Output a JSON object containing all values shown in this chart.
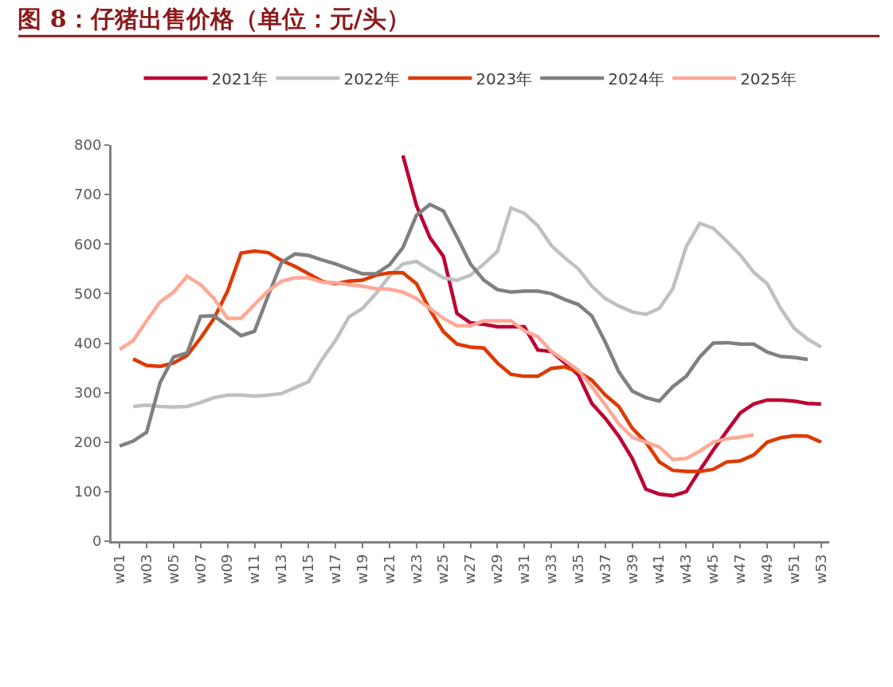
{
  "chart_data": {
    "type": "line",
    "title": "图 8：仔猪出售价格（单位：元/头）",
    "categories": [
      "w01",
      null,
      "w03",
      null,
      "w05",
      null,
      "w07",
      null,
      "w09",
      null,
      "w11",
      null,
      "w13",
      null,
      "w15",
      null,
      "w17",
      null,
      "w19",
      null,
      "w21",
      null,
      "w23",
      null,
      "w25",
      null,
      "w27",
      null,
      "w29",
      null,
      "w31",
      null,
      "w33",
      null,
      "w35",
      null,
      "w37",
      null,
      "w39",
      null,
      "w41",
      null,
      "w43",
      null,
      "w45",
      null,
      "w47",
      null,
      "w49",
      null,
      "w51",
      null,
      "w53"
    ],
    "series": [
      {
        "name": "2021年",
        "color": "#be0032",
        "values": [
          null,
          null,
          null,
          null,
          null,
          null,
          null,
          null,
          null,
          null,
          null,
          null,
          null,
          null,
          null,
          null,
          null,
          null,
          null,
          null,
          null,
          779,
          678,
          613,
          575,
          460,
          441,
          438,
          433,
          433,
          433,
          386,
          383,
          360,
          336,
          278,
          248,
          212,
          167,
          105,
          95,
          92,
          100,
          143,
          184,
          222,
          259,
          277,
          285,
          285,
          283,
          278,
          277
        ]
      },
      {
        "name": "2022年",
        "color": "#c0c0c0",
        "values": [
          null,
          272,
          275,
          272,
          271,
          272,
          280,
          290,
          295,
          295,
          293,
          295,
          298,
          310,
          322,
          367,
          405,
          453,
          470,
          500,
          535,
          560,
          565,
          548,
          532,
          527,
          537,
          560,
          585,
          673,
          662,
          637,
          597,
          572,
          550,
          515,
          490,
          475,
          463,
          458,
          470,
          510,
          595,
          642,
          632,
          606,
          578,
          543,
          520,
          470,
          430,
          408,
          392
        ]
      },
      {
        "name": "2023年",
        "color": "#dd3a00",
        "values": [
          null,
          368,
          355,
          353,
          360,
          375,
          410,
          450,
          505,
          582,
          586,
          583,
          567,
          555,
          540,
          525,
          520,
          525,
          527,
          537,
          542,
          542,
          520,
          467,
          423,
          398,
          392,
          390,
          360,
          337,
          333,
          333,
          349,
          352,
          342,
          325,
          295,
          272,
          228,
          200,
          160,
          143,
          141,
          141,
          145,
          160,
          162,
          174,
          200,
          209,
          213,
          212,
          200
        ]
      },
      {
        "name": "2024年",
        "color": "#808080",
        "values": [
          192,
          202,
          220,
          320,
          372,
          380,
          454,
          455,
          435,
          415,
          424,
          495,
          563,
          580,
          577,
          568,
          560,
          550,
          540,
          540,
          558,
          593,
          658,
          680,
          667,
          615,
          560,
          527,
          508,
          503,
          505,
          505,
          500,
          488,
          478,
          455,
          402,
          342,
          303,
          290,
          283,
          312,
          333,
          372,
          400,
          401,
          398,
          398,
          382,
          373,
          371,
          367,
          null
        ]
      },
      {
        "name": "2025年",
        "color": "#ffa897",
        "values": [
          387,
          405,
          445,
          483,
          503,
          535,
          518,
          490,
          450,
          450,
          478,
          505,
          525,
          532,
          532,
          523,
          522,
          518,
          515,
          510,
          509,
          503,
          490,
          470,
          450,
          435,
          435,
          445,
          445,
          445,
          425,
          413,
          383,
          365,
          345,
          312,
          275,
          237,
          210,
          200,
          190,
          165,
          167,
          182,
          200,
          207,
          210,
          215,
          null,
          null,
          null,
          null,
          null
        ]
      }
    ],
    "ylim": [
      0,
      800
    ],
    "yticks": [
      0,
      100,
      200,
      300,
      400,
      500,
      600,
      700,
      800
    ],
    "legend": "top",
    "marker": "none",
    "line_style": "solid"
  }
}
